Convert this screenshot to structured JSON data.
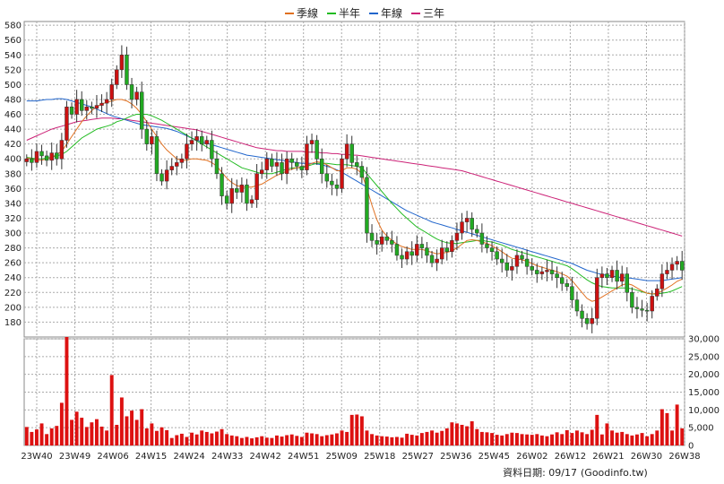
{
  "chart_data": {
    "type": "candlestick-with-volume",
    "legend": [
      {
        "name": "季線",
        "color": "#e07020"
      },
      {
        "name": "半年",
        "color": "#22bb22"
      },
      {
        "name": "年線",
        "color": "#2266cc"
      },
      {
        "name": "三年",
        "color": "#cc2277"
      }
    ],
    "x_ticks": [
      "23W40",
      "23W49",
      "24W06",
      "24W15",
      "24W24",
      "24W33",
      "24W42",
      "24W51",
      "25W09",
      "25W18",
      "25W27",
      "25W36",
      "25W45",
      "26W02",
      "26W12",
      "26W21",
      "26W30",
      "26W38"
    ],
    "price_axis": {
      "ylim": [
        160,
        585
      ],
      "ticks": [
        180,
        200,
        220,
        240,
        260,
        280,
        300,
        320,
        340,
        360,
        380,
        400,
        420,
        440,
        460,
        480,
        500,
        520,
        540,
        560,
        580
      ]
    },
    "volume_axis": {
      "ylim": [
        0,
        30000
      ],
      "ticks": [
        "30,000",
        "25,000",
        "20,000",
        "15,000",
        "10,000",
        "5,000",
        "0"
      ],
      "tick_values": [
        30000,
        25000,
        20000,
        15000,
        10000,
        5000,
        0
      ]
    },
    "grid": true,
    "up_color": "#cc1111",
    "down_color": "#22aa22",
    "close": [
      400,
      395,
      410,
      404,
      398,
      408,
      400,
      425,
      470,
      460,
      480,
      465,
      470,
      468,
      472,
      475,
      480,
      500,
      520,
      540,
      500,
      480,
      490,
      440,
      420,
      430,
      380,
      370,
      385,
      390,
      395,
      400,
      420,
      425,
      430,
      420,
      425,
      400,
      380,
      350,
      340,
      360,
      355,
      365,
      340,
      345,
      380,
      385,
      400,
      390,
      395,
      380,
      400,
      395,
      390,
      385,
      420,
      425,
      400,
      380,
      370,
      365,
      360,
      400,
      420,
      395,
      390,
      375,
      300,
      290,
      285,
      295,
      290,
      285,
      270,
      265,
      275,
      270,
      285,
      280,
      270,
      260,
      265,
      280,
      275,
      290,
      300,
      315,
      320,
      305,
      300,
      285,
      280,
      275,
      265,
      260,
      250,
      255,
      270,
      265,
      255,
      250,
      245,
      248,
      250,
      245,
      240,
      232,
      228,
      210,
      195,
      185,
      178,
      185,
      240,
      245,
      240,
      250,
      235,
      245,
      220,
      200,
      198,
      196,
      195,
      215,
      225,
      245,
      250,
      258,
      262,
      250
    ],
    "ma_quarter": [
      401,
      400,
      398,
      398,
      400,
      402,
      406,
      410,
      420,
      430,
      440,
      450,
      458,
      465,
      470,
      474,
      476,
      478,
      480,
      480,
      478,
      474,
      468,
      460,
      450,
      440,
      430,
      420,
      412,
      406,
      400,
      398,
      398,
      400,
      400,
      399,
      398,
      395,
      390,
      382,
      374,
      368,
      364,
      362,
      362,
      362,
      364,
      366,
      370,
      374,
      378,
      380,
      384,
      386,
      388,
      389,
      391,
      394,
      396,
      395,
      392,
      388,
      384,
      384,
      388,
      388,
      386,
      380,
      360,
      338,
      318,
      304,
      296,
      290,
      285,
      282,
      280,
      278,
      278,
      278,
      276,
      274,
      272,
      273,
      274,
      276,
      280,
      285,
      290,
      291,
      290,
      288,
      286,
      283,
      279,
      275,
      270,
      266,
      265,
      264,
      262,
      259,
      256,
      254,
      252,
      250,
      248,
      245,
      242,
      236,
      228,
      220,
      212,
      208,
      210,
      214,
      218,
      222,
      226,
      230,
      232,
      230,
      226,
      222,
      219,
      218,
      219,
      222,
      226,
      230,
      235,
      238
    ],
    "ma_halfyear": [
      402,
      401,
      400,
      400,
      401,
      402,
      404,
      406,
      410,
      416,
      422,
      428,
      432,
      436,
      440,
      442,
      444,
      446,
      450,
      452,
      455,
      458,
      460,
      460,
      460,
      458,
      455,
      452,
      448,
      444,
      440,
      436,
      432,
      428,
      424,
      420,
      416,
      412,
      408,
      404,
      400,
      396,
      392,
      388,
      386,
      384,
      382,
      380,
      380,
      380,
      382,
      384,
      386,
      388,
      388,
      388,
      390,
      392,
      394,
      394,
      394,
      393,
      392,
      392,
      392,
      391,
      390,
      388,
      380,
      372,
      364,
      356,
      348,
      340,
      333,
      326,
      320,
      314,
      308,
      304,
      300,
      296,
      292,
      289,
      287,
      286,
      286,
      287,
      288,
      289,
      290,
      290,
      289,
      288,
      286,
      284,
      281,
      278,
      276,
      274,
      272,
      270,
      268,
      266,
      264,
      262,
      260,
      258,
      256,
      252,
      247,
      242,
      237,
      233,
      230,
      228,
      227,
      226,
      226,
      226,
      226,
      225,
      223,
      221,
      219,
      218,
      218,
      219,
      220,
      222,
      225,
      228
    ],
    "ma_year": [
      478,
      478,
      478,
      479,
      480,
      480,
      481,
      481,
      480,
      478,
      476,
      474,
      472,
      470,
      467,
      464,
      461,
      458,
      456,
      454,
      452,
      450,
      448,
      446,
      445,
      444,
      443,
      442,
      441,
      439,
      437,
      434,
      431,
      428,
      425,
      423,
      421,
      419,
      417,
      415,
      413,
      411,
      409,
      407,
      405,
      404,
      403,
      402,
      401,
      400,
      399,
      398,
      397,
      396,
      395,
      394,
      394,
      394,
      393,
      392,
      390,
      388,
      385,
      382,
      378,
      374,
      370,
      366,
      362,
      358,
      354,
      350,
      346,
      342,
      338,
      334,
      330,
      327,
      324,
      321,
      318,
      315,
      313,
      311,
      309,
      307,
      305,
      303,
      301,
      299,
      297,
      295,
      293,
      291,
      289,
      287,
      285,
      283,
      281,
      279,
      277,
      275,
      273,
      271,
      269,
      267,
      265,
      263,
      261,
      259,
      256,
      253,
      250,
      248,
      246,
      244,
      243,
      242,
      241,
      240,
      240,
      239,
      238,
      237,
      236,
      236,
      236,
      236,
      237,
      238,
      239,
      240
    ],
    "ma_3year": [
      425,
      428,
      431,
      434,
      437,
      440,
      442,
      444,
      446,
      448,
      450,
      451,
      452,
      453,
      454,
      455,
      455,
      455,
      454,
      454,
      453,
      452,
      451,
      450,
      449,
      448,
      447,
      446,
      445,
      444,
      443,
      442,
      441,
      440,
      439,
      437,
      435,
      433,
      431,
      429,
      427,
      425,
      423,
      421,
      419,
      417,
      415,
      414,
      413,
      412,
      411,
      411,
      410,
      410,
      410,
      410,
      409,
      409,
      409,
      408,
      408,
      407,
      407,
      406,
      406,
      405,
      405,
      404,
      403,
      402,
      401,
      400,
      399,
      398,
      397,
      396,
      395,
      394,
      393,
      392,
      391,
      390,
      389,
      388,
      387,
      386,
      385,
      384,
      382,
      380,
      378,
      376,
      374,
      372,
      370,
      368,
      366,
      364,
      362,
      360,
      358,
      356,
      354,
      352,
      350,
      348,
      346,
      344,
      342,
      340,
      338,
      336,
      334,
      332,
      330,
      328,
      326,
      324,
      322,
      320,
      318,
      316,
      314,
      312,
      310,
      308,
      306,
      304,
      302,
      300,
      298,
      296
    ],
    "volume": [
      5200,
      3800,
      4500,
      6200,
      3200,
      4800,
      5500,
      12000,
      30500,
      7200,
      9500,
      7800,
      5200,
      6500,
      7400,
      5300,
      4200,
      19800,
      5800,
      13500,
      8200,
      9800,
      7200,
      10200,
      4800,
      6200,
      4100,
      5100,
      4300,
      2100,
      2900,
      3300,
      2400,
      3600,
      3100,
      4200,
      3800,
      3400,
      3900,
      4600,
      3200,
      2800,
      2600,
      2100,
      2400,
      2000,
      2300,
      2600,
      2200,
      2100,
      2800,
      2500,
      2900,
      3100,
      2700,
      2400,
      3600,
      3400,
      3200,
      2600,
      2900,
      3100,
      3400,
      4200,
      3800,
      8600,
      8700,
      8200,
      4200,
      3200,
      2800,
      2600,
      2500,
      2300,
      2400,
      2200,
      3300,
      3000,
      2800,
      3500,
      3800,
      4200,
      3600,
      4100,
      4800,
      6500,
      6200,
      5800,
      5400,
      6800,
      4600,
      3800,
      3700,
      3500,
      3000,
      2800,
      3200,
      3600,
      3500,
      3200,
      3100,
      3000,
      3200,
      2800,
      2600,
      3100,
      3700,
      3200,
      4300,
      3500,
      4200,
      3700,
      3200,
      4400,
      8600,
      3100,
      6200,
      4200,
      3600,
      3800,
      3200,
      2800,
      3100,
      3500,
      2600,
      3200,
      4200,
      10200,
      9100,
      4200,
      11500,
      4800
    ]
  },
  "source_label": "資料日期: 09/17",
  "source_site": "(Goodinfo.tw)"
}
